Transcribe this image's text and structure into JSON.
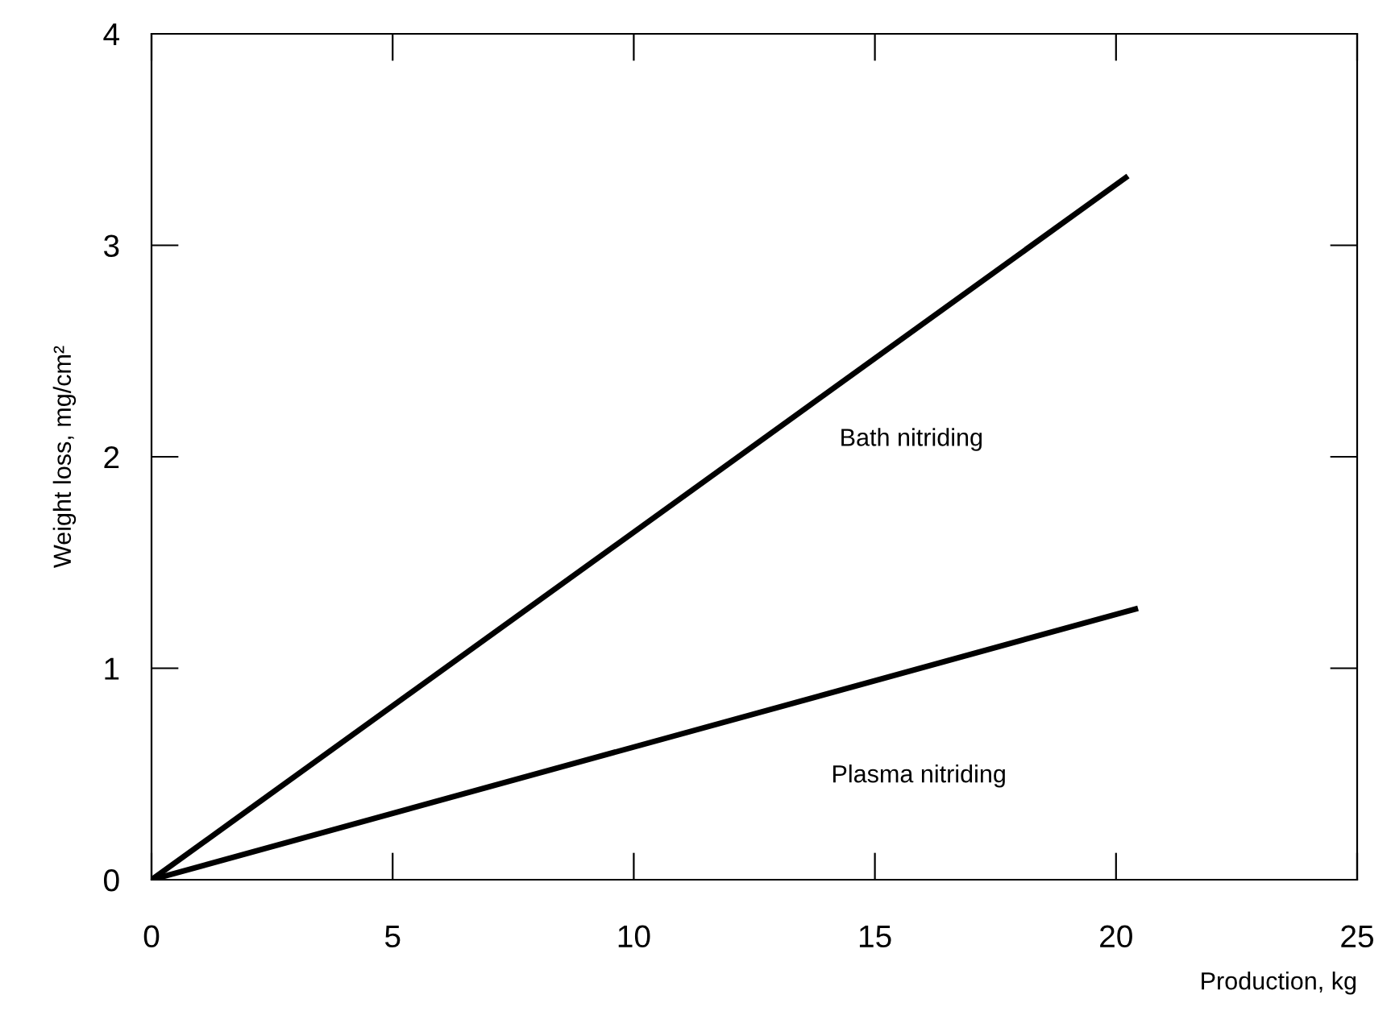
{
  "chart_data": {
    "type": "line",
    "xlabel": "Production, kg",
    "ylabel": "Weight loss, mg/cm²",
    "series": [
      {
        "name": "Bath nitriding",
        "color": "#000000",
        "x": [
          0,
          20.2
        ],
        "values": [
          0,
          3.32
        ]
      },
      {
        "name": "Plasma nitriding",
        "color": "#000000",
        "x": [
          0,
          20.4
        ],
        "values": [
          0,
          1.28
        ]
      }
    ],
    "xlim": [
      0,
      25
    ],
    "xticks": [
      0,
      5,
      10,
      15,
      20,
      25
    ],
    "ylim": [
      0,
      4
    ],
    "yticks": [
      0,
      1,
      2,
      3,
      4
    ],
    "grid": false,
    "legend": false,
    "marker": "none",
    "line_style": "solid"
  }
}
